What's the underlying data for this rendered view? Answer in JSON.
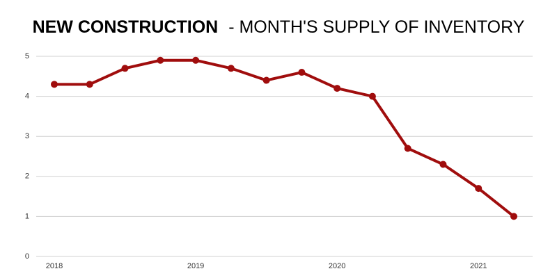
{
  "chart_data": {
    "type": "line",
    "title": {
      "bold": "NEW CONSTRUCTION",
      "rest": "- MONTH'S SUPPLY OF INVENTORY"
    },
    "categories": [
      "2018",
      null,
      null,
      null,
      "2019",
      null,
      null,
      null,
      "2020",
      null,
      null,
      null,
      "2021",
      null
    ],
    "series": [
      {
        "name": "Month's Supply of Inventory",
        "color": "#a00d0d",
        "values": [
          4.3,
          4.3,
          4.7,
          4.9,
          4.9,
          4.7,
          4.4,
          4.6,
          4.2,
          4.0,
          2.7,
          2.3,
          1.7,
          1.0
        ]
      }
    ],
    "ylim": [
      0,
      5
    ],
    "yticks": [
      0,
      1,
      2,
      3,
      4,
      5
    ],
    "grid": true,
    "legend": false
  }
}
